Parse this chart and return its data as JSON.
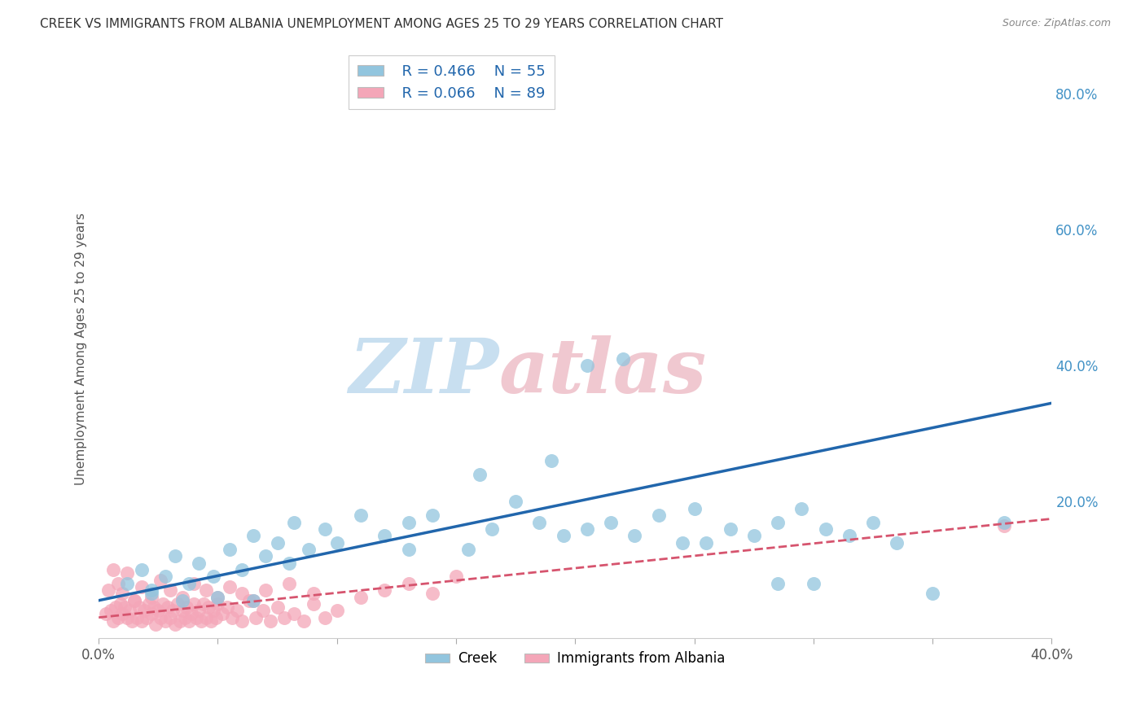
{
  "title": "CREEK VS IMMIGRANTS FROM ALBANIA UNEMPLOYMENT AMONG AGES 25 TO 29 YEARS CORRELATION CHART",
  "source": "Source: ZipAtlas.com",
  "ylabel": "Unemployment Among Ages 25 to 29 years",
  "xlim": [
    0.0,
    0.4
  ],
  "ylim": [
    0.0,
    0.85
  ],
  "x_ticks": [
    0.0,
    0.05,
    0.1,
    0.15,
    0.2,
    0.25,
    0.3,
    0.35,
    0.4
  ],
  "y_ticks": [
    0.0,
    0.2,
    0.4,
    0.6,
    0.8
  ],
  "creek_color": "#92c5de",
  "creek_line_color": "#2166ac",
  "albania_color": "#f4a6b8",
  "albania_line_color": "#d6546e",
  "creek_R": 0.466,
  "creek_N": 55,
  "albania_R": 0.066,
  "albania_N": 89,
  "creek_scatter_x": [
    0.012,
    0.018,
    0.022,
    0.028,
    0.032,
    0.038,
    0.042,
    0.048,
    0.055,
    0.06,
    0.065,
    0.07,
    0.075,
    0.082,
    0.088,
    0.095,
    0.1,
    0.11,
    0.12,
    0.13,
    0.14,
    0.155,
    0.165,
    0.175,
    0.185,
    0.195,
    0.205,
    0.215,
    0.225,
    0.235,
    0.245,
    0.255,
    0.265,
    0.275,
    0.285,
    0.295,
    0.305,
    0.315,
    0.325,
    0.335,
    0.022,
    0.035,
    0.05,
    0.065,
    0.08,
    0.19,
    0.13,
    0.16,
    0.22,
    0.3,
    0.25,
    0.285,
    0.35,
    0.205,
    0.38
  ],
  "creek_scatter_y": [
    0.08,
    0.1,
    0.07,
    0.09,
    0.12,
    0.08,
    0.11,
    0.09,
    0.13,
    0.1,
    0.15,
    0.12,
    0.14,
    0.17,
    0.13,
    0.16,
    0.14,
    0.18,
    0.15,
    0.13,
    0.18,
    0.13,
    0.16,
    0.2,
    0.17,
    0.15,
    0.16,
    0.17,
    0.15,
    0.18,
    0.14,
    0.14,
    0.16,
    0.15,
    0.17,
    0.19,
    0.16,
    0.15,
    0.17,
    0.14,
    0.065,
    0.055,
    0.06,
    0.055,
    0.11,
    0.26,
    0.17,
    0.24,
    0.41,
    0.08,
    0.19,
    0.08,
    0.065,
    0.4,
    0.17
  ],
  "albania_scatter_x": [
    0.003,
    0.005,
    0.006,
    0.007,
    0.008,
    0.009,
    0.01,
    0.011,
    0.012,
    0.013,
    0.014,
    0.015,
    0.016,
    0.017,
    0.018,
    0.019,
    0.02,
    0.021,
    0.022,
    0.023,
    0.024,
    0.025,
    0.026,
    0.027,
    0.028,
    0.029,
    0.03,
    0.031,
    0.032,
    0.033,
    0.034,
    0.035,
    0.036,
    0.037,
    0.038,
    0.039,
    0.04,
    0.041,
    0.042,
    0.043,
    0.044,
    0.045,
    0.046,
    0.047,
    0.048,
    0.049,
    0.05,
    0.052,
    0.054,
    0.056,
    0.058,
    0.06,
    0.063,
    0.066,
    0.069,
    0.072,
    0.075,
    0.078,
    0.082,
    0.086,
    0.09,
    0.095,
    0.1,
    0.11,
    0.12,
    0.13,
    0.14,
    0.15,
    0.004,
    0.006,
    0.008,
    0.01,
    0.012,
    0.015,
    0.018,
    0.022,
    0.026,
    0.03,
    0.035,
    0.04,
    0.045,
    0.05,
    0.055,
    0.06,
    0.065,
    0.07,
    0.08,
    0.09,
    0.38
  ],
  "albania_scatter_y": [
    0.035,
    0.04,
    0.025,
    0.045,
    0.03,
    0.05,
    0.035,
    0.045,
    0.03,
    0.04,
    0.025,
    0.055,
    0.03,
    0.045,
    0.025,
    0.04,
    0.03,
    0.05,
    0.035,
    0.045,
    0.02,
    0.04,
    0.03,
    0.05,
    0.025,
    0.045,
    0.03,
    0.04,
    0.02,
    0.05,
    0.025,
    0.04,
    0.03,
    0.045,
    0.025,
    0.035,
    0.05,
    0.03,
    0.04,
    0.025,
    0.05,
    0.03,
    0.045,
    0.025,
    0.04,
    0.03,
    0.05,
    0.035,
    0.045,
    0.03,
    0.04,
    0.025,
    0.055,
    0.03,
    0.04,
    0.025,
    0.045,
    0.03,
    0.035,
    0.025,
    0.05,
    0.03,
    0.04,
    0.06,
    0.07,
    0.08,
    0.065,
    0.09,
    0.07,
    0.1,
    0.08,
    0.065,
    0.095,
    0.055,
    0.075,
    0.06,
    0.085,
    0.07,
    0.06,
    0.08,
    0.07,
    0.06,
    0.075,
    0.065,
    0.055,
    0.07,
    0.08,
    0.065,
    0.165
  ],
  "creek_line_x": [
    0.0,
    0.4
  ],
  "creek_line_y": [
    0.055,
    0.345
  ],
  "albania_line_x": [
    0.0,
    0.4
  ],
  "albania_line_y": [
    0.03,
    0.175
  ],
  "grid_color": "#cccccc",
  "background_color": "#ffffff",
  "watermark_zip": "ZIP",
  "watermark_atlas": "atlas",
  "watermark_color_blue": "#c8dff0",
  "watermark_color_pink": "#f0c8d0"
}
